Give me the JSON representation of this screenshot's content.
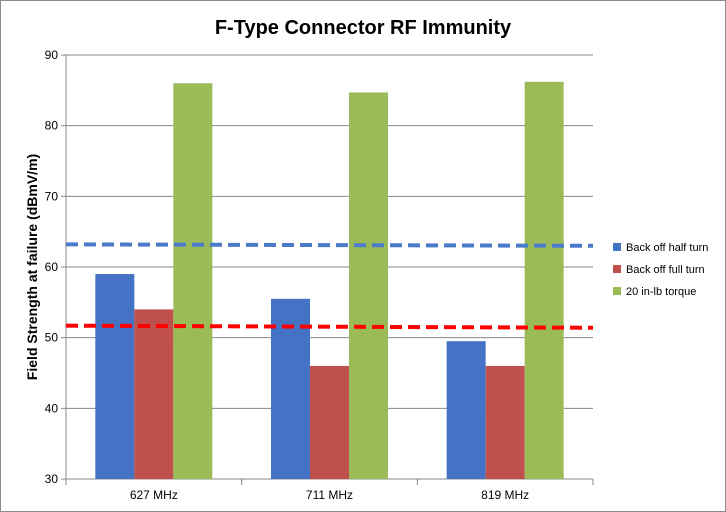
{
  "chart_data": {
    "type": "bar",
    "title": "F-Type Connector RF Immunity",
    "xlabel": "",
    "ylabel": "Field Strength at failure (dBmV/m)",
    "ylim": [
      30,
      90
    ],
    "yticks": [
      30,
      40,
      50,
      60,
      70,
      80,
      90
    ],
    "grid": true,
    "legend_position": "right",
    "categories": [
      "627 MHz",
      "711 MHz",
      "819 MHz"
    ],
    "series": [
      {
        "name": "Back off half turn",
        "color": "#4472C4",
        "values": [
          59,
          55.5,
          49.5
        ]
      },
      {
        "name": "Back off full turn",
        "color": "#C0504D",
        "values": [
          54,
          46,
          46
        ]
      },
      {
        "name": "20 in-lb torque",
        "color": "#9BBB59",
        "values": [
          86,
          84.7,
          86.2
        ]
      }
    ],
    "reference_lines": [
      {
        "style": "dashed",
        "color": "#4A7CC9",
        "y_start": 63.2,
        "y_end": 63.0
      },
      {
        "style": "dashed",
        "color": "#FF0000",
        "y_start": 51.7,
        "y_end": 51.4
      }
    ]
  }
}
